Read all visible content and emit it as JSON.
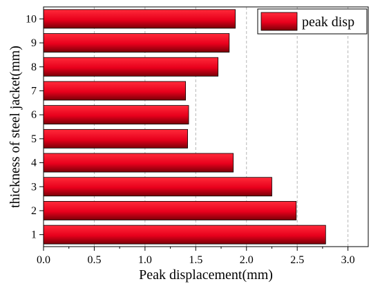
{
  "chart_data": {
    "type": "bar",
    "orientation": "horizontal",
    "categories": [
      "1",
      "2",
      "3",
      "4",
      "5",
      "6",
      "7",
      "8",
      "9",
      "10"
    ],
    "series": [
      {
        "name": "peak disp",
        "values": [
          2.78,
          2.49,
          2.25,
          1.87,
          1.42,
          1.43,
          1.4,
          1.72,
          1.83,
          1.89
        ]
      }
    ],
    "xlabel": "Peak displacement(mm)",
    "ylabel": "thickness of steel jacket(mm)",
    "xlim": [
      0,
      3.2
    ],
    "xticks": [
      "0.0",
      "0.5",
      "1.0",
      "1.5",
      "2.0",
      "2.5",
      "3.0"
    ],
    "legend_position": "top-right",
    "bar_color": "#e8001c",
    "grid": true
  }
}
